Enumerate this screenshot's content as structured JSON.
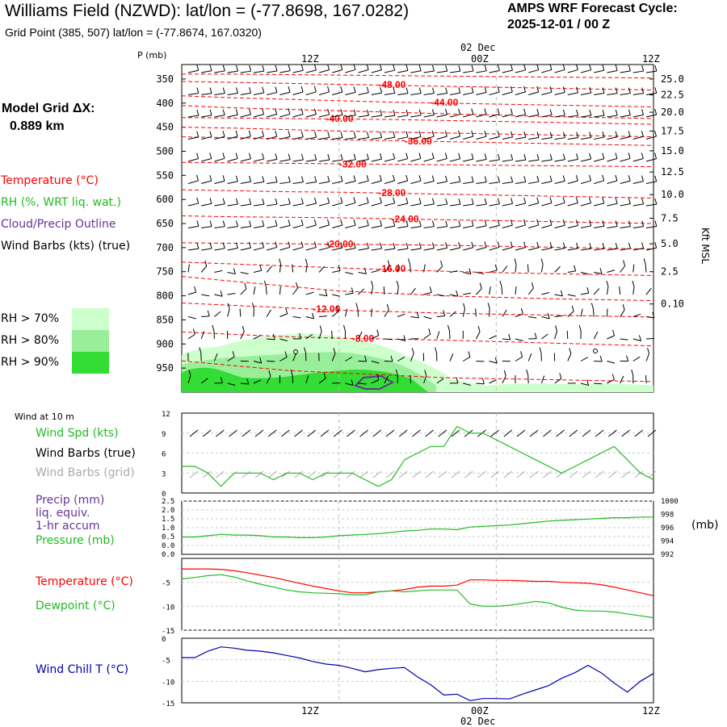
{
  "header": {
    "title": "Williams Field (NZWD):  lat/lon = (-77.8698, 167.0282)",
    "subtitle": "Grid Point (385, 507) lat/lon = (-77.8674, 167.0320)",
    "cycle_label": "AMPS WRF Forecast Cycle:",
    "cycle_value": "2025-12-01 / 00  Z"
  },
  "model": {
    "label": "Model Grid ΔX:",
    "value": "0.889 km"
  },
  "sounding": {
    "p_label": "P (mb)",
    "height_label": "Kft MSL",
    "legend": {
      "temperature": "Temperature (°C)",
      "rh": "RH (%, WRT liq. wat.)",
      "cloud": "Cloud/Precip Outline",
      "wind": "Wind Barbs (kts) (true)"
    },
    "rh_legend": [
      "RH > 70%",
      "RH > 80%",
      "RH > 90%"
    ]
  },
  "panels": {
    "wind_title": "Wind at 10 m",
    "wind_spd": "Wind Spd (kts)",
    "wind_barbs_true": "Wind Barbs (true)",
    "wind_barbs_grid": "Wind Barbs (grid)",
    "precip_l1": "Precip (mm)",
    "precip_l2": "liq. equiv.",
    "precip_l3": "1-hr accum",
    "pressure": "Pressure (mb)",
    "pressure_unit": "(mb)",
    "temperature": "Temperature (°C)",
    "dewpoint": "Dewpoint (°C)",
    "windchill": "Wind Chill T (°C)"
  },
  "time_axis": {
    "labels": [
      "12Z",
      "00Z",
      "12Z"
    ],
    "date": "02 Dec"
  },
  "colors": {
    "temperature": "#ff0000",
    "rh": "#22bb22",
    "cloud": "#663399",
    "windchill": "#0000aa",
    "rh70": "#ccffcc",
    "rh80": "#99ee99",
    "rh90": "#33dd33",
    "grid_barbs": "#aaaaaa"
  },
  "chart_data": [
    {
      "type": "line",
      "name": "sounding",
      "x_hours": [
        0,
        36
      ],
      "y_pressure_levels": [
        350,
        400,
        450,
        500,
        550,
        600,
        650,
        700,
        750,
        800,
        850,
        900,
        950
      ],
      "ylim": [
        1000,
        320
      ],
      "height_axis_kft": [
        {
          "label": "25.0",
          "p": 350
        },
        {
          "label": "22.5",
          "p": 383
        },
        {
          "label": "20.0",
          "p": 419
        },
        {
          "label": "17.5",
          "p": 458
        },
        {
          "label": "15.0",
          "p": 499
        },
        {
          "label": "12.5",
          "p": 543
        },
        {
          "label": "10.0",
          "p": 590
        },
        {
          "label": "7.5",
          "p": 639
        },
        {
          "label": "5.0",
          "p": 692
        },
        {
          "label": "2.5",
          "p": 750
        },
        {
          "label": "0.10",
          "p": 817
        }
      ],
      "isotherms": [
        {
          "label": "-48.00",
          "t": 15,
          "p": [
            355,
            357,
            359,
            361,
            363,
            365,
            367,
            369,
            371,
            373
          ]
        },
        {
          "label": "-44.00",
          "t": 19,
          "p": [
            385,
            389,
            392,
            395,
            398,
            400,
            402,
            404,
            406,
            408
          ]
        },
        {
          "label": "-40.00",
          "t": 11,
          "p": [
            430,
            431,
            432,
            433,
            434,
            436,
            438,
            440,
            442,
            444
          ]
        },
        {
          "label": "-36.00",
          "t": 17,
          "p": [
            470,
            472,
            474,
            476,
            478,
            480,
            482,
            484,
            486,
            488
          ]
        },
        {
          "label": "-32.00",
          "t": 12,
          "p": [
            523,
            524,
            525,
            526,
            527,
            528,
            529,
            530,
            531,
            532
          ]
        },
        {
          "label": "-28.00",
          "t": 15,
          "p": [
            580,
            582,
            584,
            585,
            587,
            589,
            591,
            593,
            595,
            597
          ]
        },
        {
          "label": "-24.00",
          "t": 16,
          "p": [
            634,
            636,
            637,
            638,
            640,
            642,
            644,
            646,
            648,
            650
          ]
        },
        {
          "label": "-20.00",
          "t": 11,
          "p": [
            690,
            691,
            692,
            693,
            694,
            695,
            697,
            699,
            701,
            703
          ]
        },
        {
          "label": "-16.00",
          "t": 15,
          "p": [
            730,
            734,
            738,
            742,
            746,
            749,
            752,
            754,
            756,
            758
          ]
        },
        {
          "label": "-12.00",
          "t": 10,
          "p": [
            815,
            820,
            825,
            830,
            833,
            836,
            838,
            840,
            842,
            844
          ]
        },
        {
          "label": "-8.00",
          "t": 13,
          "p": [
            875,
            880,
            885,
            888,
            890,
            892,
            895,
            898,
            901,
            904
          ]
        }
      ],
      "contours_no_label": [
        {
          "p": [
            340,
            340,
            341,
            342,
            343,
            344,
            345,
            346,
            347,
            348
          ]
        },
        {
          "p": [
            405,
            410,
            413,
            416,
            419,
            422,
            425,
            428,
            430,
            432
          ]
        },
        {
          "p": [
            450,
            452,
            455,
            458,
            460,
            462,
            464,
            466,
            468,
            470
          ]
        },
        {
          "p": [
            760,
            770,
            780,
            790,
            795,
            800,
            803,
            806,
            808,
            810
          ]
        },
        {
          "p": [
            935,
            945,
            955,
            960,
            965,
            970,
            972,
            974,
            976,
            978
          ]
        }
      ]
    },
    {
      "type": "line",
      "name": "wind_10m",
      "ylabel": "kts",
      "ylim": [
        0,
        12
      ],
      "yticks": [
        0,
        3,
        6,
        9,
        12
      ],
      "series": [
        {
          "name": "Wind Spd (kts)",
          "values": [
            4,
            4,
            3,
            1,
            3,
            3,
            3,
            2,
            3,
            3,
            2,
            3,
            3,
            3,
            2,
            1,
            2,
            5,
            6,
            7,
            7,
            10,
            9,
            9,
            8,
            7,
            6,
            5,
            4,
            3,
            4,
            5,
            6,
            7,
            5,
            3,
            2
          ]
        }
      ]
    },
    {
      "type": "line",
      "name": "precip_pressure",
      "ylim_precip": [
        0,
        2.5
      ],
      "yticks_precip": [
        "0.0",
        "0.0",
        "0.5",
        "1.0",
        "1.5",
        "2.0",
        "2.5"
      ],
      "ylim_pressure": [
        992,
        1000
      ],
      "yticks_pressure": [
        "992",
        "994",
        "996",
        "998",
        "1000"
      ],
      "series": [
        {
          "name": "Pressure (mb)",
          "values": [
            994.6,
            994.6,
            994.8,
            995.0,
            994.9,
            994.9,
            994.8,
            994.6,
            994.6,
            994.5,
            994.5,
            994.6,
            994.8,
            994.9,
            995.0,
            995.1,
            995.3,
            995.5,
            995.6,
            995.8,
            995.8,
            995.7,
            996.1,
            996.2,
            996.3,
            996.4,
            996.6,
            996.8,
            997.0,
            997.1,
            997.2,
            997.3,
            997.4,
            997.5,
            997.5,
            997.6,
            997.6
          ]
        }
      ]
    },
    {
      "type": "line",
      "name": "temp_dewpoint",
      "ylim": [
        -15,
        0
      ],
      "yticks": [
        -15,
        -10,
        -5
      ],
      "series": [
        {
          "name": "Temperature (°C)",
          "values": [
            -2.2,
            -2.2,
            -2.2,
            -2.3,
            -2.6,
            -3.0,
            -3.5,
            -4.0,
            -4.6,
            -5.2,
            -5.8,
            -6.3,
            -6.8,
            -7.2,
            -7.2,
            -7.0,
            -6.8,
            -6.5,
            -6.0,
            -5.8,
            -5.8,
            -5.6,
            -4.5,
            -4.5,
            -4.6,
            -4.6,
            -4.7,
            -4.8,
            -4.8,
            -5.0,
            -5.1,
            -5.2,
            -5.5,
            -6.0,
            -6.6,
            -7.2,
            -7.8
          ]
        },
        {
          "name": "Dewpoint (°C)",
          "values": [
            -4.3,
            -4.0,
            -3.6,
            -3.4,
            -3.9,
            -4.7,
            -5.4,
            -6.0,
            -6.6,
            -7.0,
            -7.2,
            -7.3,
            -7.4,
            -7.6,
            -7.6,
            -7.0,
            -6.8,
            -7.0,
            -6.8,
            -6.6,
            -6.6,
            -6.6,
            -9.5,
            -10.0,
            -10.0,
            -9.8,
            -9.4,
            -9.0,
            -9.3,
            -10.2,
            -10.8,
            -11.0,
            -11.0,
            -11.2,
            -11.6,
            -12.0,
            -12.4
          ]
        }
      ]
    },
    {
      "type": "line",
      "name": "windchill",
      "ylim": [
        -15,
        0
      ],
      "yticks": [
        -15,
        -10,
        -5,
        0
      ],
      "series": [
        {
          "name": "Wind Chill T (°C)",
          "values": [
            -4.5,
            -4.5,
            -3.0,
            -2.0,
            -2.3,
            -2.8,
            -3.0,
            -3.4,
            -4.0,
            -4.6,
            -5.4,
            -6.0,
            -6.3,
            -7.0,
            -7.8,
            -7.3,
            -7.0,
            -6.8,
            -9.0,
            -10.8,
            -13.2,
            -13.0,
            -14.5,
            -14.0,
            -14.0,
            -14.1,
            -13.0,
            -12.0,
            -11.0,
            -9.3,
            -8.0,
            -6.3,
            -8.0,
            -10.4,
            -12.5,
            -10.0,
            -8.2
          ]
        }
      ]
    }
  ]
}
